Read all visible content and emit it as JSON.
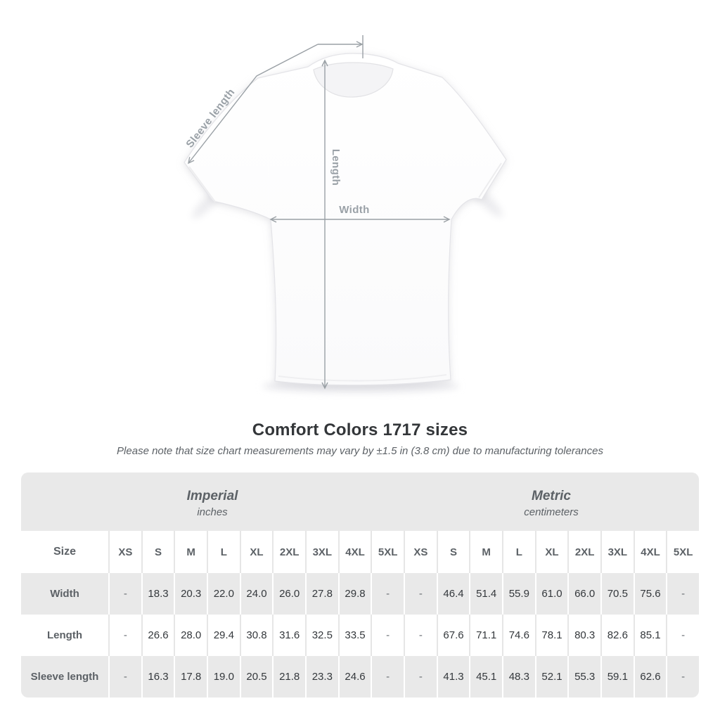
{
  "diagram": {
    "labels": {
      "sleeve_length": "Sleeve length",
      "length": "Length",
      "width": "Width"
    }
  },
  "chart_data": {
    "type": "table",
    "title": "Comfort Colors 1717 sizes",
    "subtitle": "Please note that size chart measurements may vary by ±1.5 in (3.8 cm) due to manufacturing tolerances",
    "unit_groups": [
      {
        "label": "Imperial",
        "unit": "inches"
      },
      {
        "label": "Metric",
        "unit": "centimeters"
      }
    ],
    "size_header": "Size",
    "sizes": [
      "XS",
      "S",
      "M",
      "L",
      "XL",
      "2XL",
      "3XL",
      "4XL",
      "5XL"
    ],
    "rows": [
      {
        "label": "Width",
        "imperial": [
          "-",
          "18.3",
          "20.3",
          "22.0",
          "24.0",
          "26.0",
          "27.8",
          "29.8",
          "-"
        ],
        "metric": [
          "-",
          "46.4",
          "51.4",
          "55.9",
          "61.0",
          "66.0",
          "70.5",
          "75.6",
          "-"
        ]
      },
      {
        "label": "Length",
        "imperial": [
          "-",
          "26.6",
          "28.0",
          "29.4",
          "30.8",
          "31.6",
          "32.5",
          "33.5",
          "-"
        ],
        "metric": [
          "-",
          "67.6",
          "71.1",
          "74.6",
          "78.1",
          "80.3",
          "82.6",
          "85.1",
          "-"
        ]
      },
      {
        "label": "Sleeve length",
        "imperial": [
          "-",
          "16.3",
          "17.8",
          "19.0",
          "20.5",
          "21.8",
          "23.3",
          "24.6",
          "-"
        ],
        "metric": [
          "-",
          "41.3",
          "45.1",
          "48.3",
          "52.1",
          "55.3",
          "59.1",
          "62.6",
          "-"
        ]
      }
    ]
  },
  "colors": {
    "band": "#e9e9e9",
    "row_alt": "#e9e9e9",
    "sep_light": "#e6e6e6",
    "text_dark": "#34383c",
    "text_gray": "#5c6166",
    "annotation_line": "#9aa0a5",
    "annotation_text": "#9aa1a7",
    "shirt_outline": "#e4e4e8"
  }
}
